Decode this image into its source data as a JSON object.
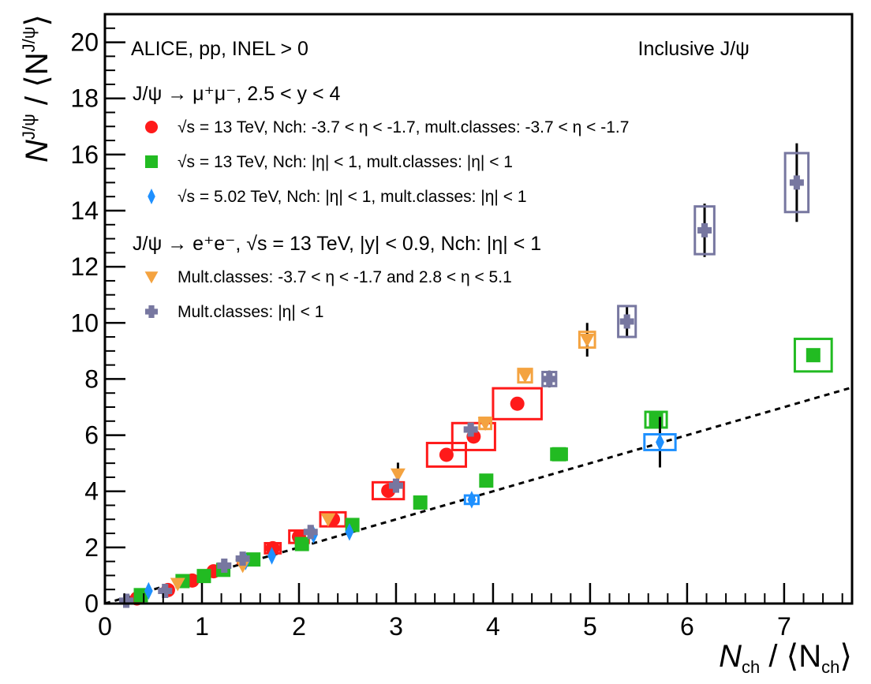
{
  "chart_data": {
    "type": "scatter",
    "title": "Inclusive J/ψ",
    "experiment_label": "ALICE, pp, INEL > 0",
    "xlabel": {
      "main": "N",
      "sub": "ch",
      "mid": " / ⟨N",
      "sub2": "ch",
      "end": "⟩"
    },
    "ylabel": {
      "main": "N",
      "sup": "J/ψ",
      "mid": " / ⟨N",
      "sup2": "J/ψ",
      "end": "⟩"
    },
    "xlim": [
      0,
      7.7
    ],
    "ylim": [
      0,
      21
    ],
    "x_ticks": [
      0,
      1,
      2,
      3,
      4,
      5,
      6,
      7
    ],
    "y_ticks": [
      0,
      2,
      4,
      6,
      8,
      10,
      12,
      14,
      16,
      18,
      20
    ],
    "legend_groups": [
      {
        "header": "J/ψ → μ⁺μ⁻, 2.5 < y < 4",
        "series_indices": [
          0,
          1,
          2
        ]
      },
      {
        "header": "J/ψ → e⁺e⁻, √s = 13 TeV, |y| < 0.9, Nch: |η| < 1",
        "series_indices": [
          3,
          4
        ]
      }
    ],
    "series": [
      {
        "name": "√s = 13 TeV, Nch: -3.7 < η < -1.7, mult.classes: -3.7 < η < -1.7",
        "marker": "circle",
        "color": "#ff1a1a",
        "x": [
          0.33,
          0.65,
          0.9,
          1.12,
          1.45,
          1.73,
          2.0,
          2.35,
          2.92,
          3.52,
          3.8,
          4.25
        ],
        "y": [
          0.18,
          0.48,
          0.82,
          1.15,
          1.55,
          1.97,
          2.38,
          3.0,
          4.02,
          5.3,
          5.95,
          7.12
        ],
        "syst_x": [
          0.0,
          0.0,
          0.0,
          0.0,
          0.08,
          0.08,
          0.1,
          0.13,
          0.16,
          0.2,
          0.22,
          0.25
        ],
        "syst_y": [
          0.0,
          0.0,
          0.0,
          0.0,
          0.12,
          0.18,
          0.22,
          0.25,
          0.3,
          0.42,
          0.48,
          0.55
        ]
      },
      {
        "name": "√s = 13 TeV, Nch: |η| < 1, mult.classes: |η| < 1",
        "marker": "square",
        "color": "#22bb22",
        "x": [
          0.37,
          0.8,
          1.02,
          1.22,
          1.53,
          2.03,
          2.55,
          3.25,
          3.93,
          4.68,
          5.68,
          7.3
        ],
        "y": [
          0.3,
          0.8,
          0.98,
          1.2,
          1.57,
          2.12,
          2.8,
          3.6,
          4.38,
          5.32,
          6.55,
          8.85
        ],
        "syst_x": [
          0.0,
          0.0,
          0.0,
          0.0,
          0.0,
          0.06,
          0.0,
          0.0,
          0.0,
          0.08,
          0.11,
          0.19
        ],
        "syst_y": [
          0.0,
          0.0,
          0.0,
          0.0,
          0.0,
          0.15,
          0.0,
          0.0,
          0.0,
          0.2,
          0.28,
          0.58
        ]
      },
      {
        "name": "√s = 5.02 TeV, Nch: |η| < 1, mult.classes: |η| < 1",
        "marker": "diamond",
        "color": "#1e90ff",
        "x": [
          0.45,
          1.45,
          1.72,
          2.15,
          2.52,
          3.78,
          5.72
        ],
        "y": [
          0.45,
          1.5,
          1.7,
          2.45,
          2.55,
          3.7,
          5.75
        ],
        "syst_x": [
          0.0,
          0.0,
          0.0,
          0.0,
          0.0,
          0.07,
          0.16
        ],
        "syst_y": [
          0.0,
          0.0,
          0.0,
          0.0,
          0.0,
          0.15,
          0.28
        ],
        "err_y": [
          0.0,
          0.0,
          0.0,
          0.0,
          0.0,
          0.0,
          0.9
        ]
      },
      {
        "name": "Mult.classes: -3.7 < η < -1.7 and 2.8 < η < 5.1",
        "marker": "triangle-down",
        "color": "#f4a340",
        "x": [
          0.75,
          1.42,
          2.3,
          3.02,
          3.92,
          4.33,
          4.97
        ],
        "y": [
          0.7,
          1.35,
          3.0,
          4.6,
          6.42,
          8.12,
          9.4
        ],
        "syst_x": [
          0.0,
          0.0,
          0.0,
          0.0,
          0.06,
          0.07,
          0.08
        ],
        "syst_y": [
          0.0,
          0.0,
          0.0,
          0.0,
          0.2,
          0.24,
          0.28
        ],
        "err_y": [
          0.0,
          0.0,
          0.0,
          0.42,
          0.0,
          0.0,
          0.6
        ]
      },
      {
        "name": "Mult.classes: |η| < 1",
        "marker": "cross",
        "color": "#7777a0",
        "x": [
          0.22,
          0.62,
          1.23,
          1.42,
          2.12,
          3.0,
          3.77,
          4.58,
          5.38,
          6.18,
          7.13
        ],
        "y": [
          0.1,
          0.45,
          1.35,
          1.6,
          2.55,
          4.2,
          6.2,
          8.0,
          10.05,
          13.3,
          15.0
        ],
        "syst_x": [
          0.0,
          0.0,
          0.0,
          0.0,
          0.0,
          0.0,
          0.0,
          0.07,
          0.09,
          0.1,
          0.12
        ],
        "syst_y": [
          0.0,
          0.0,
          0.0,
          0.0,
          0.0,
          0.0,
          0.0,
          0.25,
          0.55,
          0.85,
          1.05
        ],
        "err_y": [
          0.0,
          0.0,
          0.0,
          0.0,
          0.0,
          0.0,
          0.0,
          0.3,
          0.55,
          0.95,
          1.4
        ]
      }
    ],
    "reference_line": {
      "label": "linear reference",
      "style": "dashed",
      "x0": 0,
      "y0": 0,
      "x1": 7.7,
      "y1": 7.7
    }
  }
}
